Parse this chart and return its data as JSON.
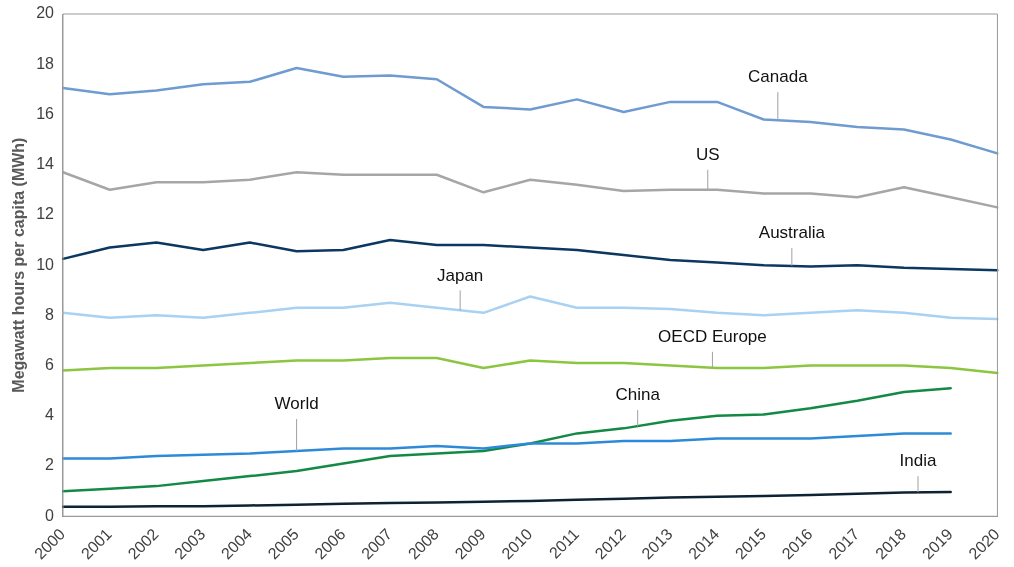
{
  "chart_data": {
    "type": "line",
    "ylabel": "Megawatt hours per capita (MWh)",
    "categories": [
      "2000",
      "2001",
      "2002",
      "2003",
      "2004",
      "2005",
      "2006",
      "2007",
      "2008",
      "2009",
      "2010",
      "2011",
      "2012",
      "2013",
      "2014",
      "2015",
      "2016",
      "2017",
      "2018",
      "2019",
      "2020"
    ],
    "ylim": [
      0,
      20
    ],
    "yticks": [
      0,
      2,
      4,
      6,
      8,
      10,
      12,
      14,
      16,
      18,
      20
    ],
    "grid": false,
    "legend": false,
    "marker": "none",
    "line_style": "solid",
    "series": [
      {
        "name": "Canada",
        "color": "#6f9bd1",
        "values": [
          17.05,
          16.8,
          16.95,
          17.2,
          17.3,
          17.85,
          17.5,
          17.55,
          17.4,
          16.3,
          16.2,
          16.6,
          16.1,
          16.5,
          16.5,
          15.8,
          15.7,
          15.5,
          15.4,
          15.0,
          14.45
        ]
      },
      {
        "name": "US",
        "color": "#a6a6a6",
        "values": [
          13.7,
          13.0,
          13.3,
          13.3,
          13.4,
          13.7,
          13.6,
          13.6,
          13.6,
          12.9,
          13.4,
          13.2,
          12.95,
          13.0,
          13.0,
          12.85,
          12.85,
          12.7,
          13.1,
          12.7,
          12.3
        ]
      },
      {
        "name": "Australia",
        "color": "#0b3761",
        "values": [
          10.25,
          10.7,
          10.9,
          10.6,
          10.9,
          10.55,
          10.6,
          11.0,
          10.8,
          10.8,
          10.7,
          10.6,
          10.4,
          10.2,
          10.1,
          10.0,
          9.95,
          10.0,
          9.9,
          9.85,
          9.8
        ]
      },
      {
        "name": "Japan",
        "color": "#a9d1f2",
        "values": [
          8.1,
          7.9,
          8.0,
          7.9,
          8.1,
          8.3,
          8.3,
          8.5,
          8.3,
          8.1,
          8.75,
          8.3,
          8.3,
          8.25,
          8.1,
          8.0,
          8.1,
          8.2,
          8.1,
          7.9,
          7.85
        ]
      },
      {
        "name": "OECD Europe",
        "color": "#8cc540",
        "values": [
          5.8,
          5.9,
          5.9,
          6.0,
          6.1,
          6.2,
          6.2,
          6.3,
          6.3,
          5.9,
          6.2,
          6.1,
          6.1,
          6.0,
          5.9,
          5.9,
          6.0,
          6.0,
          6.0,
          5.9,
          5.7
        ]
      },
      {
        "name": "World",
        "color": "#2e8ad8",
        "values": [
          2.3,
          2.3,
          2.4,
          2.45,
          2.5,
          2.6,
          2.7,
          2.7,
          2.8,
          2.7,
          2.9,
          2.9,
          3.0,
          3.0,
          3.1,
          3.1,
          3.1,
          3.2,
          3.3,
          3.3,
          null
        ]
      },
      {
        "name": "China",
        "color": "#128a45",
        "values": [
          1.0,
          1.1,
          1.2,
          1.4,
          1.6,
          1.8,
          2.1,
          2.4,
          2.5,
          2.6,
          2.9,
          3.3,
          3.5,
          3.8,
          4.0,
          4.05,
          4.3,
          4.6,
          4.95,
          5.1,
          null
        ]
      },
      {
        "name": "India",
        "color": "#0d2233",
        "values": [
          0.38,
          0.38,
          0.4,
          0.4,
          0.43,
          0.46,
          0.5,
          0.53,
          0.55,
          0.58,
          0.61,
          0.66,
          0.7,
          0.75,
          0.78,
          0.81,
          0.85,
          0.9,
          0.95,
          0.97,
          null
        ]
      }
    ]
  }
}
